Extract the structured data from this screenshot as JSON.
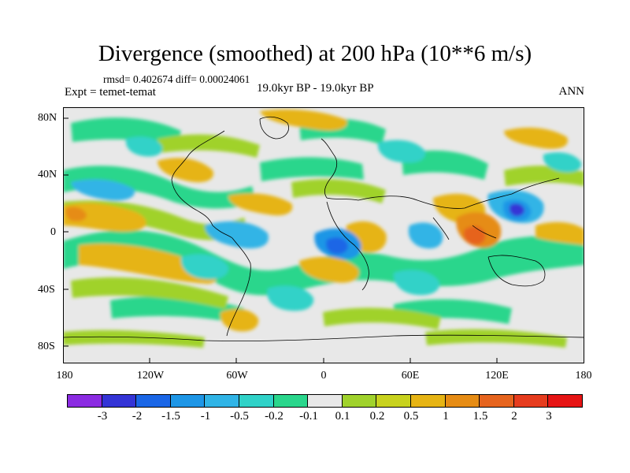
{
  "title": "Divergence (smoothed) at 200 hPa (10**6 m/s)",
  "stats": "rmsd= 0.402674 diff= 0.00024061",
  "experiment": "Expt = temet-temat",
  "period": "19.0kyr BP - 19.0kyr BP",
  "season": "ANN",
  "map": {
    "projection": "cylindrical-equidistant",
    "lon_range": [
      -180,
      180
    ],
    "lat_range": [
      -90,
      90
    ],
    "y_ticks": [
      "80N",
      "40N",
      "0",
      "40S",
      "80S"
    ],
    "x_ticks": [
      "180",
      "120W",
      "60W",
      "0",
      "60E",
      "120E",
      "180"
    ]
  },
  "colorbar": {
    "labels": [
      "-3",
      "-2",
      "-1.5",
      "-1",
      "-0.5",
      "-0.2",
      "-0.1",
      "0.1",
      "0.2",
      "0.5",
      "1",
      "1.5",
      "2",
      "3"
    ],
    "colors": [
      "#8b2be2",
      "#3434d6",
      "#1a66e6",
      "#1e96e6",
      "#30b4e6",
      "#30d2c8",
      "#2ad68c",
      "#e8e8e8",
      "#a0d22c",
      "#c8d21e",
      "#e6b414",
      "#e68c14",
      "#e6641e",
      "#e63c1e",
      "#e61414"
    ]
  }
}
